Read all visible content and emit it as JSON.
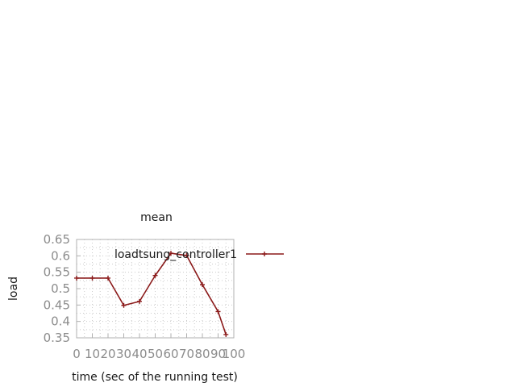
{
  "chart_data": {
    "type": "line",
    "title": "mean",
    "xlabel": "time (sec of the running test)",
    "ylabel": "load",
    "xlim": [
      0,
      100
    ],
    "ylim": [
      0.35,
      0.65
    ],
    "x_ticks": [
      "0",
      "10",
      "20",
      "30",
      "40",
      "50",
      "60",
      "70",
      "80",
      "90",
      "100"
    ],
    "y_ticks": [
      "0.35",
      "0.4",
      "0.45",
      "0.5",
      "0.55",
      "0.6",
      "0.65"
    ],
    "grid": true,
    "legend_position": "top-right",
    "series": [
      {
        "name": "loadtsung_controller1",
        "color": "#8b1a1a",
        "marker": "plus",
        "x": [
          0,
          10,
          20,
          30,
          40,
          50,
          60,
          70,
          80,
          90,
          95
        ],
        "y": [
          0.532,
          0.532,
          0.532,
          0.449,
          0.461,
          0.54,
          0.608,
          0.601,
          0.512,
          0.43,
          0.36
        ]
      }
    ]
  }
}
